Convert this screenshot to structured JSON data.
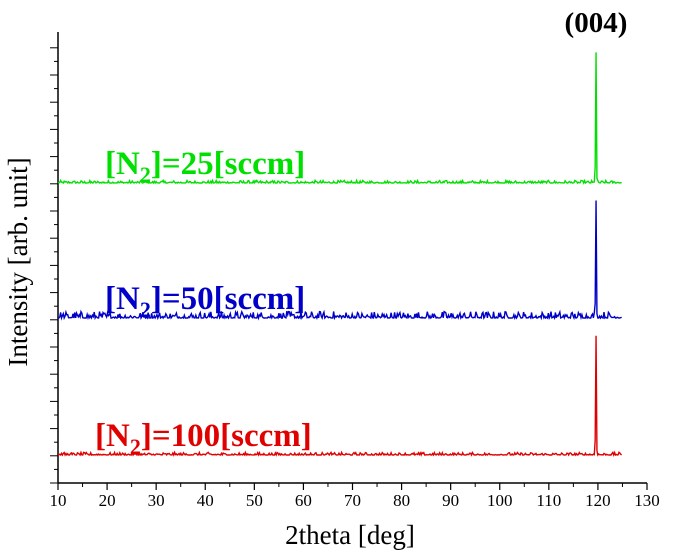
{
  "chart_data": {
    "type": "line",
    "xlabel": "2theta [deg]",
    "ylabel": "Intensity [arb. unit]",
    "xlim": [
      10,
      130
    ],
    "x_ticks": [
      10,
      20,
      30,
      40,
      50,
      60,
      70,
      80,
      90,
      100,
      110,
      120,
      130
    ],
    "x_tick_labels": [
      "10",
      "20",
      "30",
      "40",
      "50",
      "60",
      "70",
      "80",
      "90",
      "100",
      "110",
      "120",
      "130"
    ],
    "y_tick_labels_shown": false,
    "stacked_offset": true,
    "grid": false,
    "data_x_range": [
      10,
      125
    ],
    "series": [
      {
        "label_prefix": "[N",
        "label_subscript": "2",
        "label_suffix": "]=25[sccm]",
        "color": "#00e000",
        "noise": "low",
        "peaks": [
          {
            "x": 119.6,
            "relative_height": 1.0
          }
        ]
      },
      {
        "label_prefix": "[N",
        "label_subscript": "2",
        "label_suffix": "]=50[sccm]",
        "color": "#0000c8",
        "noise": "moderate",
        "peaks": [
          {
            "x": 119.6,
            "relative_height": 0.9
          }
        ]
      },
      {
        "label_prefix": "[N",
        "label_subscript": "2",
        "label_suffix": "]=100[sccm]",
        "color": "#e00000",
        "noise": "low",
        "peaks": [
          {
            "x": 119.6,
            "relative_height": 0.9
          }
        ]
      }
    ],
    "annotations": [
      {
        "text": "(004)",
        "x": 119.6
      }
    ]
  }
}
